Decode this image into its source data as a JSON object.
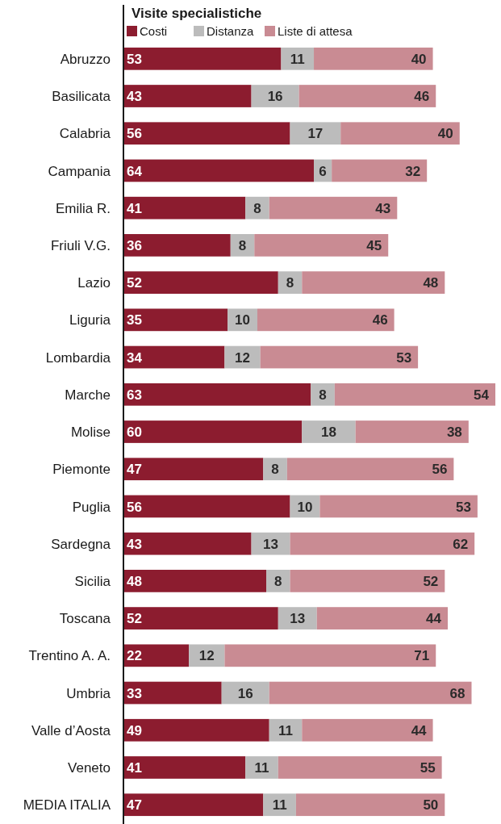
{
  "chart_data": {
    "type": "bar",
    "orientation": "horizontal",
    "stacked": true,
    "title": "Visite specialistiche",
    "legend": "top",
    "data_labels": true,
    "categories": [
      "Abruzzo",
      "Basilicata",
      "Calabria",
      "Campania",
      "Emilia R.",
      "Friuli V.G.",
      "Lazio",
      "Liguria",
      "Lombardia",
      "Marche",
      "Molise",
      "Piemonte",
      "Puglia",
      "Sardegna",
      "Sicilia",
      "Toscana",
      "Trentino A. A.",
      "Umbria",
      "Valle d’Aosta",
      "Veneto",
      "MEDIA ITALIA"
    ],
    "series": [
      {
        "name": "Costi",
        "color": "#8c1c2f",
        "values": [
          53,
          43,
          56,
          64,
          41,
          36,
          52,
          35,
          34,
          63,
          60,
          47,
          56,
          43,
          48,
          52,
          22,
          33,
          49,
          41,
          47
        ]
      },
      {
        "name": "Distanza",
        "color": "#bcbcbc",
        "values": [
          11,
          16,
          17,
          6,
          8,
          8,
          8,
          10,
          12,
          8,
          18,
          8,
          10,
          13,
          8,
          13,
          12,
          16,
          11,
          11,
          11
        ]
      },
      {
        "name": "Liste di attesa",
        "color": "#c98b93",
        "values": [
          40,
          46,
          40,
          32,
          43,
          45,
          48,
          46,
          53,
          54,
          38,
          56,
          53,
          62,
          52,
          44,
          71,
          68,
          44,
          55,
          50
        ]
      }
    ]
  }
}
